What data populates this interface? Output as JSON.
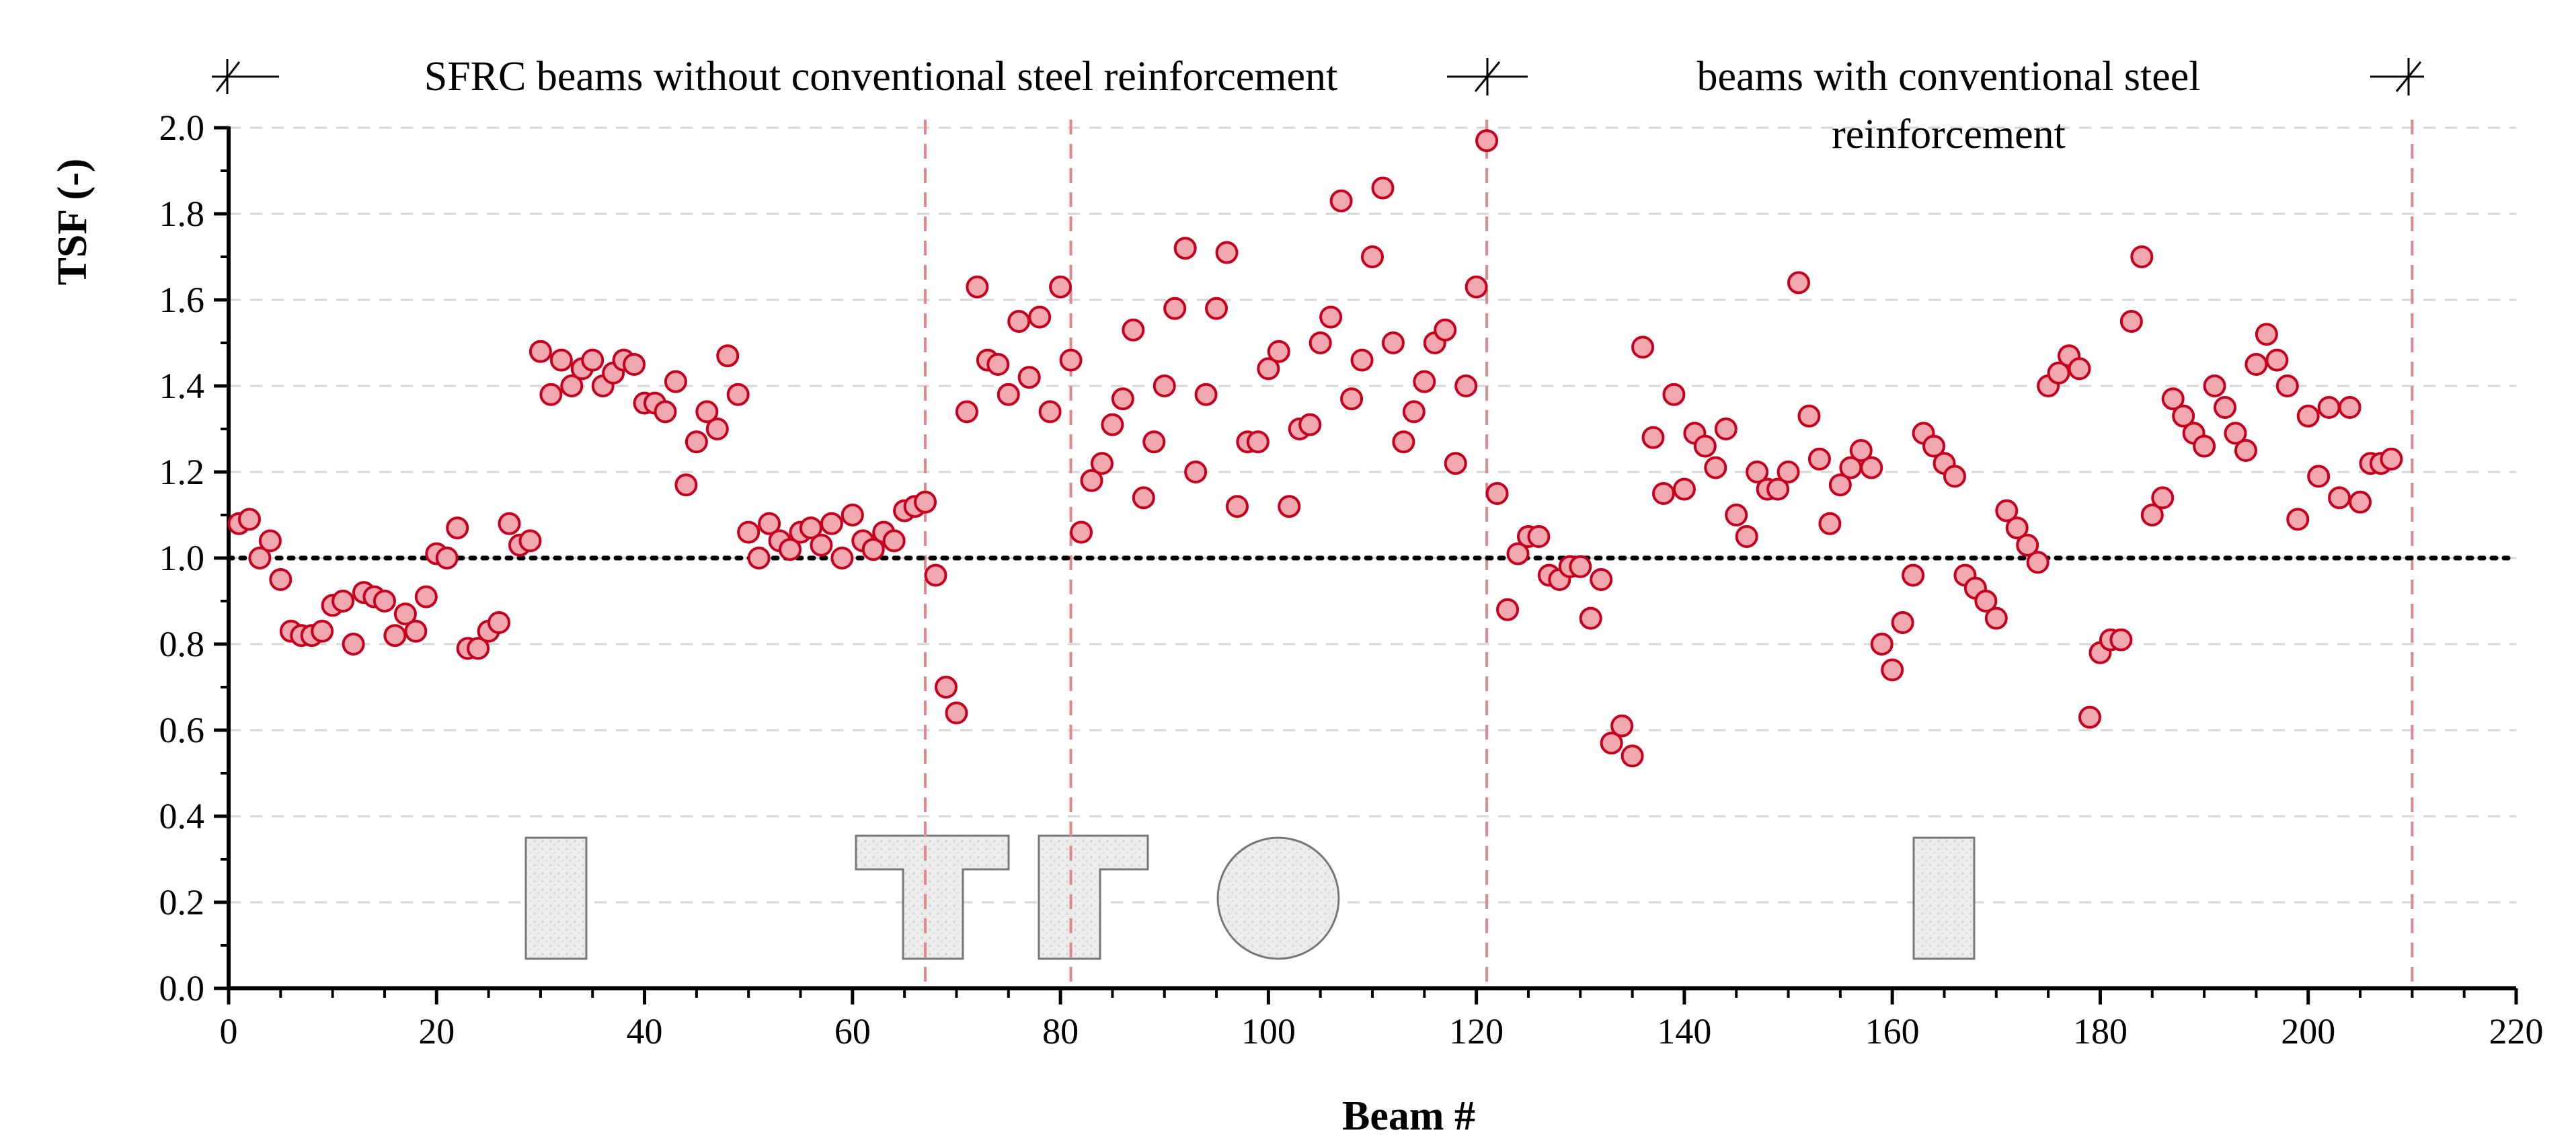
{
  "chart_data": {
    "type": "scatter",
    "title": "",
    "xlabel": "Beam #",
    "ylabel": "TSF (-)",
    "xlim": [
      0,
      220
    ],
    "ylim": [
      0,
      2.0
    ],
    "x_ticks": [
      0,
      20,
      40,
      60,
      80,
      100,
      120,
      140,
      160,
      180,
      200,
      220
    ],
    "y_ticks": [
      0.0,
      0.2,
      0.4,
      0.6,
      0.8,
      1.0,
      1.2,
      1.4,
      1.6,
      1.8,
      2.0
    ],
    "x_tick_labels": [
      "0",
      "20",
      "40",
      "60",
      "80",
      "100",
      "120",
      "140",
      "160",
      "180",
      "200",
      "220"
    ],
    "y_tick_labels": [
      "0.0",
      "0.2",
      "0.4",
      "0.6",
      "0.8",
      "1.0",
      "1.2",
      "1.4",
      "1.6",
      "1.8",
      "2.0"
    ],
    "grid": "horizontal dashed",
    "reference_line": {
      "y": 1.0,
      "style": "dotted"
    },
    "region_boundaries_x": [
      67,
      81,
      121,
      210
    ],
    "annotations": {
      "group1": "SFRC beams without conventional steel reinforcement",
      "group2_line1": "beams with conventional steel",
      "group2_line2": "reinforcement"
    },
    "cross_sections": [
      "rectangular",
      "T-section",
      "T-section",
      "circular",
      "rectangular"
    ],
    "series": [
      {
        "name": "TSF",
        "marker_fill": "#f0a8ae",
        "marker_edge": "#c8001e",
        "x": [
          1,
          2,
          3,
          4,
          5,
          6,
          7,
          8,
          9,
          10,
          11,
          12,
          13,
          14,
          15,
          16,
          17,
          18,
          19,
          20,
          21,
          22,
          23,
          24,
          25,
          26,
          27,
          28,
          29,
          30,
          31,
          32,
          33,
          34,
          35,
          36,
          37,
          38,
          39,
          40,
          41,
          42,
          43,
          44,
          45,
          46,
          47,
          48,
          49,
          50,
          51,
          52,
          53,
          54,
          55,
          56,
          57,
          58,
          59,
          60,
          61,
          62,
          63,
          64,
          65,
          66,
          67,
          68,
          69,
          70,
          71,
          72,
          73,
          74,
          75,
          76,
          77,
          78,
          79,
          80,
          81,
          82,
          83,
          84,
          85,
          86,
          87,
          88,
          89,
          90,
          91,
          92,
          93,
          94,
          95,
          96,
          97,
          98,
          99,
          100,
          101,
          102,
          103,
          104,
          105,
          106,
          107,
          108,
          109,
          110,
          111,
          112,
          113,
          114,
          115,
          116,
          117,
          118,
          119,
          120,
          121,
          122,
          123,
          124,
          125,
          126,
          127,
          128,
          129,
          130,
          131,
          132,
          133,
          134,
          135,
          136,
          137,
          138,
          139,
          140,
          141,
          142,
          143,
          144,
          145,
          146,
          147,
          148,
          149,
          150,
          151,
          152,
          153,
          154,
          155,
          156,
          157,
          158,
          159,
          160,
          161,
          162,
          163,
          164,
          165,
          166,
          167,
          168,
          169,
          170,
          171,
          172,
          173,
          174,
          175,
          176,
          177,
          178,
          179,
          180,
          181,
          182,
          183,
          184,
          185,
          186,
          187,
          188,
          189,
          190,
          191,
          192,
          193,
          194,
          195,
          196,
          197,
          198,
          199,
          200,
          201,
          202,
          203,
          204,
          205,
          206,
          207,
          208
        ],
        "y": [
          1.08,
          1.09,
          1.0,
          1.04,
          0.95,
          0.83,
          0.82,
          0.82,
          0.83,
          0.89,
          0.9,
          0.8,
          0.92,
          0.91,
          0.9,
          0.82,
          0.87,
          0.83,
          0.91,
          1.01,
          1.0,
          1.07,
          0.79,
          0.79,
          0.83,
          0.85,
          1.08,
          1.03,
          1.04,
          1.48,
          1.38,
          1.46,
          1.4,
          1.44,
          1.46,
          1.4,
          1.43,
          1.46,
          1.45,
          1.36,
          1.36,
          1.34,
          1.41,
          1.17,
          1.27,
          1.34,
          1.3,
          1.47,
          1.38,
          1.06,
          1.0,
          1.08,
          1.04,
          1.02,
          1.06,
          1.07,
          1.03,
          1.08,
          1.0,
          1.1,
          1.04,
          1.02,
          1.06,
          1.04,
          1.11,
          1.12,
          1.13,
          0.96,
          0.7,
          0.64,
          1.34,
          1.63,
          1.46,
          1.45,
          1.38,
          1.55,
          1.42,
          1.56,
          1.34,
          1.63,
          1.46,
          1.06,
          1.18,
          1.22,
          1.31,
          1.37,
          1.53,
          1.14,
          1.27,
          1.4,
          1.58,
          1.72,
          1.2,
          1.38,
          1.58,
          1.71,
          1.12,
          1.27,
          1.27,
          1.44,
          1.48,
          1.12,
          1.3,
          1.31,
          1.5,
          1.56,
          1.83,
          1.37,
          1.46,
          1.7,
          1.86,
          1.5,
          1.27,
          1.34,
          1.41,
          1.5,
          1.53,
          1.22,
          1.4,
          1.63,
          1.97,
          1.15,
          0.88,
          1.01,
          1.05,
          1.05,
          0.96,
          0.95,
          0.98,
          0.98,
          0.86,
          0.95,
          0.57,
          0.61,
          0.54,
          1.49,
          1.28,
          1.15,
          1.38,
          1.16,
          1.29,
          1.26,
          1.21,
          1.3,
          1.1,
          1.05,
          1.2,
          1.16,
          1.16,
          1.2,
          1.64,
          1.33,
          1.23,
          1.08,
          1.17,
          1.21,
          1.25,
          1.21,
          0.8,
          0.74,
          0.85,
          0.96,
          1.29,
          1.26,
          1.22,
          1.19,
          0.96,
          0.93,
          0.9,
          0.86,
          1.11,
          1.07,
          1.03,
          0.99,
          1.4,
          1.43,
          1.47,
          1.44,
          0.63,
          0.78,
          0.81,
          0.81,
          1.55,
          1.7,
          1.1,
          1.14,
          1.37,
          1.33,
          1.29,
          1.26,
          1.4,
          1.35,
          1.29,
          1.25,
          1.45,
          1.52,
          1.46,
          1.4,
          1.09,
          1.33,
          1.19,
          1.35,
          1.14,
          1.35,
          1.13,
          1.22,
          1.22,
          1.23
        ]
      }
    ]
  }
}
